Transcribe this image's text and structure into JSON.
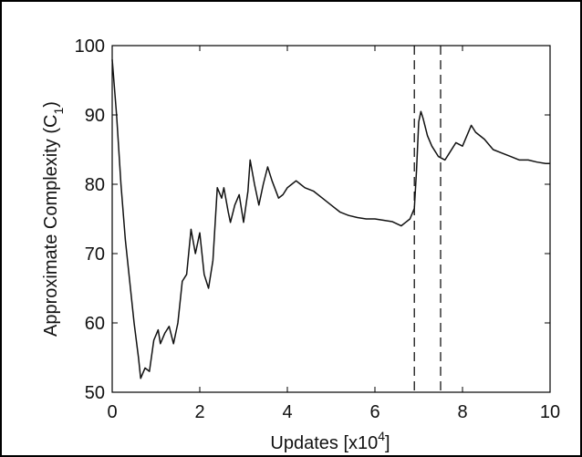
{
  "chart_data": {
    "type": "line",
    "xlabel": [
      "Updates [x10",
      "4",
      "]"
    ],
    "ylabel": [
      "Approximate Complexity (C",
      "1",
      ")"
    ],
    "xlim": [
      0,
      10
    ],
    "ylim": [
      50,
      100
    ],
    "xticks": [
      0,
      2,
      4,
      6,
      8,
      10
    ],
    "yticks": [
      50,
      60,
      70,
      80,
      90,
      100
    ],
    "vlines": [
      6.9,
      7.5
    ],
    "series": [
      {
        "color": "#111111",
        "x": [
          0,
          0.1,
          0.2,
          0.3,
          0.4,
          0.5,
          0.6,
          0.65,
          0.75,
          0.85,
          0.95,
          1.05,
          1.1,
          1.2,
          1.3,
          1.4,
          1.5,
          1.6,
          1.7,
          1.8,
          1.9,
          2.0,
          2.1,
          2.2,
          2.3,
          2.4,
          2.5,
          2.55,
          2.65,
          2.7,
          2.8,
          2.9,
          3.0,
          3.1,
          3.15,
          3.25,
          3.35,
          3.45,
          3.55,
          3.65,
          3.8,
          3.9,
          4.0,
          4.1,
          4.2,
          4.3,
          4.4,
          4.6,
          4.8,
          5.0,
          5.2,
          5.4,
          5.6,
          5.8,
          6.0,
          6.2,
          6.4,
          6.6,
          6.7,
          6.8,
          6.9,
          6.95,
          7.0,
          7.05,
          7.1,
          7.2,
          7.3,
          7.45,
          7.6,
          7.7,
          7.85,
          8.0,
          8.1,
          8.2,
          8.3,
          8.5,
          8.7,
          8.9,
          9.1,
          9.3,
          9.5,
          9.7,
          9.9,
          10
        ],
        "values": [
          98,
          90,
          80,
          72,
          66,
          60,
          55,
          52,
          53.5,
          53,
          57.5,
          59,
          57,
          58.5,
          59.5,
          57,
          60,
          66,
          67,
          73.5,
          70,
          73,
          67,
          65,
          69,
          79.5,
          78,
          79.5,
          76,
          74.5,
          77,
          78.5,
          74.5,
          79,
          83.5,
          80,
          77,
          80,
          82.5,
          80.5,
          78,
          78.5,
          79.5,
          80,
          80.5,
          80,
          79.5,
          79,
          78,
          77,
          76,
          75.5,
          75.2,
          75,
          75,
          74.8,
          74.6,
          74,
          74.5,
          75,
          76.5,
          82,
          89,
          90.5,
          89.5,
          87,
          85.5,
          84,
          83.5,
          84.5,
          86,
          85.5,
          87,
          88.5,
          87.5,
          86.5,
          85,
          84.5,
          84,
          83.5,
          83.5,
          83.2,
          83,
          83
        ]
      }
    ]
  }
}
